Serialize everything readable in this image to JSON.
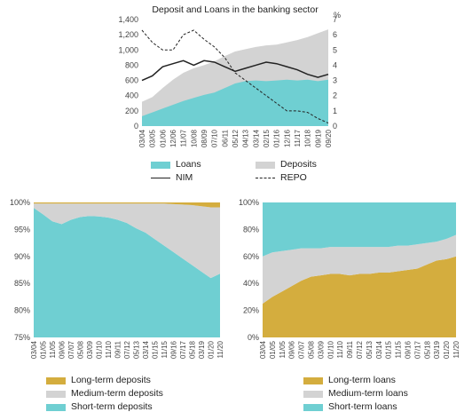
{
  "colors": {
    "teal": "#6fcfd2",
    "gray": "#d3d3d3",
    "gold": "#d4ad3e",
    "line": "#222222"
  },
  "chart_data": [
    {
      "type": "area",
      "title": "Deposit and Loans in the banking sector",
      "right_unit": "%",
      "x": [
        "03/04",
        "03/05",
        "01/06",
        "12/06",
        "11/07",
        "10/08",
        "08/09",
        "07/10",
        "06/11",
        "05/12",
        "04/13",
        "03/14",
        "02/15",
        "01/16",
        "12/16",
        "11/17",
        "10/18",
        "09/19",
        "09/20"
      ],
      "ylim_left": [
        0,
        1400
      ],
      "yticks_left": [
        "0",
        "200",
        "400",
        "600",
        "800",
        "1,000",
        "1,200",
        "1,400"
      ],
      "ylim_right": [
        0,
        7
      ],
      "yticks_right": [
        "0",
        "1",
        "2",
        "3",
        "4",
        "5",
        "6",
        "7"
      ],
      "series": [
        {
          "name": "Loans",
          "axis": "left",
          "kind": "area",
          "values": [
            130,
            180,
            230,
            280,
            330,
            370,
            410,
            440,
            500,
            560,
            590,
            600,
            590,
            600,
            610,
            600,
            610,
            590,
            610
          ]
        },
        {
          "name": "Deposits",
          "axis": "left",
          "kind": "area",
          "values": [
            320,
            380,
            500,
            610,
            700,
            760,
            800,
            850,
            920,
            980,
            1010,
            1040,
            1060,
            1070,
            1100,
            1130,
            1170,
            1220,
            1270
          ]
        },
        {
          "name": "NIM",
          "axis": "right",
          "kind": "line",
          "values": [
            3.0,
            3.3,
            3.9,
            4.1,
            4.3,
            4.0,
            4.3,
            4.2,
            3.9,
            3.6,
            3.8,
            4.0,
            4.2,
            4.1,
            3.9,
            3.7,
            3.4,
            3.2,
            3.4
          ]
        },
        {
          "name": "REPO",
          "axis": "right",
          "kind": "line",
          "values": [
            6.3,
            5.5,
            5.0,
            5.0,
            6.0,
            6.3,
            5.7,
            5.2,
            4.5,
            3.5,
            3.0,
            2.5,
            2.0,
            1.5,
            1.0,
            1.0,
            0.9,
            0.5,
            0.2
          ]
        }
      ],
      "legend": [
        {
          "label": "Loans",
          "kind": "area"
        },
        {
          "label": "Deposits",
          "kind": "area"
        },
        {
          "label": "NIM",
          "kind": "line"
        },
        {
          "label": "REPO",
          "kind": "dashed"
        }
      ]
    },
    {
      "type": "area",
      "stacked_percent": true,
      "x": [
        "03/04",
        "01/05",
        "11/05",
        "09/06",
        "07/07",
        "05/08",
        "03/09",
        "01/10",
        "11/10",
        "09/11",
        "07/12",
        "05/13",
        "03/14",
        "01/15",
        "11/15",
        "09/16",
        "07/17",
        "05/18",
        "03/19",
        "01/20",
        "11/20"
      ],
      "ylim": [
        75,
        100
      ],
      "yticks": [
        "75%",
        "80%",
        "85%",
        "90%",
        "95%",
        "100%"
      ],
      "series": [
        {
          "name": "Short-term deposits",
          "values": [
            99.0,
            97.8,
            96.5,
            96.0,
            96.8,
            97.3,
            97.5,
            97.4,
            97.2,
            96.8,
            96.2,
            95.2,
            94.4,
            93.2,
            92.0,
            90.8,
            89.6,
            88.4,
            87.2,
            86.0,
            86.8
          ]
        },
        {
          "name": "Medium-term deposits",
          "values": [
            0.8,
            2.0,
            3.3,
            3.8,
            3.0,
            2.5,
            2.3,
            2.4,
            2.6,
            3.0,
            3.6,
            4.6,
            5.4,
            6.6,
            7.8,
            8.9,
            10.0,
            11.1,
            12.1,
            13.1,
            12.3
          ]
        },
        {
          "name": "Long-term deposits",
          "values": [
            0.2,
            0.2,
            0.2,
            0.2,
            0.2,
            0.2,
            0.2,
            0.2,
            0.2,
            0.2,
            0.2,
            0.2,
            0.2,
            0.2,
            0.2,
            0.3,
            0.4,
            0.5,
            0.7,
            0.9,
            0.9
          ]
        }
      ],
      "legend_labels": [
        "Long-term deposits",
        "Medium-term deposits",
        "Short-term deposits"
      ]
    },
    {
      "type": "area",
      "stacked_percent": true,
      "x": [
        "03/04",
        "01/05",
        "11/05",
        "09/06",
        "07/07",
        "05/08",
        "03/09",
        "01/10",
        "11/10",
        "09/11",
        "07/12",
        "05/13",
        "03/14",
        "01/15",
        "11/15",
        "09/16",
        "07/17",
        "05/18",
        "03/19",
        "01/20",
        "11/20"
      ],
      "ylim": [
        0,
        100
      ],
      "yticks": [
        "0%",
        "20%",
        "40%",
        "60%",
        "80%",
        "100%"
      ],
      "series": [
        {
          "name": "Long-term loans",
          "values": [
            25,
            30,
            34,
            38,
            42,
            45,
            46,
            47,
            47,
            46,
            47,
            47,
            48,
            48,
            49,
            50,
            51,
            54,
            57,
            58,
            60
          ]
        },
        {
          "name": "Medium-term loans",
          "values": [
            35,
            33,
            30,
            27,
            24,
            21,
            20,
            20,
            20,
            21,
            20,
            20,
            19,
            19,
            19,
            18,
            18,
            16,
            14,
            15,
            16
          ]
        },
        {
          "name": "Short-term loans",
          "values": [
            40,
            37,
            36,
            35,
            34,
            34,
            34,
            33,
            33,
            33,
            33,
            33,
            33,
            33,
            32,
            32,
            31,
            30,
            29,
            27,
            24
          ]
        }
      ],
      "legend_labels": [
        "Long-term loans",
        "Medium-term loans",
        "Short-term loans"
      ]
    }
  ]
}
